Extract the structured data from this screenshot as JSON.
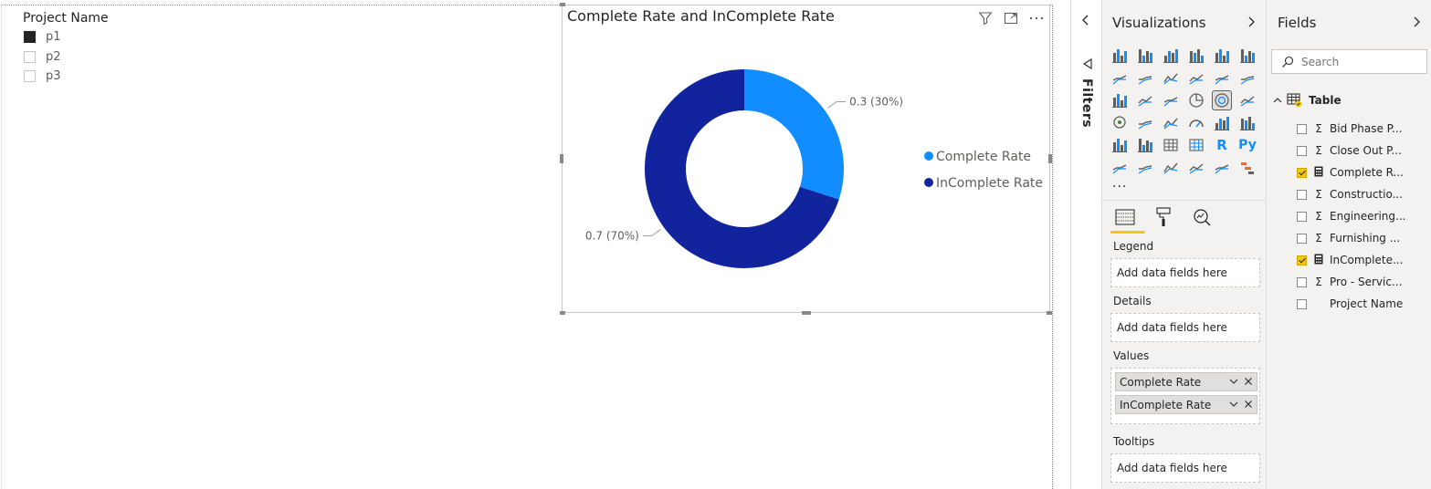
{
  "slicer": {
    "title": "Project Name",
    "items": [
      {
        "label": "p1",
        "checked": true
      },
      {
        "label": "p2",
        "checked": false
      },
      {
        "label": "p3",
        "checked": false
      }
    ]
  },
  "visual": {
    "title": "Complete Rate and InComplete Rate",
    "header_icons": [
      "filter-icon",
      "focus-mode-icon",
      "more-options-icon"
    ]
  },
  "chart_data": {
    "type": "pie",
    "variant": "donut",
    "title": "Complete Rate and InComplete Rate",
    "legend_position": "right",
    "series": [
      {
        "name": "Complete Rate",
        "value": 0.3,
        "label": "0.3 (30%)",
        "color": "#118dff"
      },
      {
        "name": "InComplete Rate",
        "value": 0.7,
        "label": "0.7 (70%)",
        "color": "#12239e"
      }
    ]
  },
  "filters": {
    "label": "Filters"
  },
  "visualizations": {
    "title": "Visualizations",
    "more": "...",
    "selected_index": 16,
    "icons": [
      "stacked-bar-icon",
      "stacked-column-icon",
      "clustered-bar-icon",
      "clustered-column-icon",
      "100-stacked-bar-icon",
      "100-stacked-column-icon",
      "line-chart-icon",
      "area-chart-icon",
      "stacked-area-icon",
      "line-clustered-column-icon",
      "line-stacked-column-icon",
      "ribbon-chart-icon",
      "waterfall-icon",
      "funnel-icon",
      "scatter-icon",
      "pie-chart-icon",
      "donut-chart-icon",
      "treemap-icon",
      "map-icon",
      "filled-map-icon",
      "shape-map-icon",
      "gauge-icon",
      "card-icon",
      "multi-row-card-icon",
      "kpi-icon",
      "slicer-icon",
      "table-icon",
      "matrix-icon",
      "r-visual-icon",
      "python-visual-icon",
      "key-influencers-icon",
      "decomposition-tree-icon",
      "qa-icon",
      "smart-narrative-icon",
      "power-apps-icon",
      "power-automate-icon"
    ],
    "r_label": "R",
    "py_label": "Py",
    "tabs": [
      "fields-tab-icon",
      "format-tab-icon",
      "analytics-tab-icon"
    ],
    "wells": {
      "legend": {
        "label": "Legend",
        "placeholder": "Add data fields here"
      },
      "details": {
        "label": "Details",
        "placeholder": "Add data fields here"
      },
      "values": {
        "label": "Values",
        "items": [
          "Complete Rate",
          "InComplete Rate"
        ]
      },
      "tooltips": {
        "label": "Tooltips",
        "placeholder": "Add data fields here"
      }
    }
  },
  "fields": {
    "title": "Fields",
    "search_placeholder": "Search",
    "table_name": "Table",
    "items": [
      {
        "label": "Bid Phase P...",
        "type": "Σ",
        "checked": false
      },
      {
        "label": "Close Out P...",
        "type": "Σ",
        "checked": false
      },
      {
        "label": "Complete R...",
        "type": "calc",
        "checked": true
      },
      {
        "label": "Constructio...",
        "type": "Σ",
        "checked": false
      },
      {
        "label": "Engineering...",
        "type": "Σ",
        "checked": false
      },
      {
        "label": "Furnishing ...",
        "type": "Σ",
        "checked": false
      },
      {
        "label": "InComplete...",
        "type": "calc",
        "checked": true
      },
      {
        "label": "Pro - Servic...",
        "type": "Σ",
        "checked": false
      },
      {
        "label": "Project Name",
        "type": "",
        "checked": false
      }
    ]
  },
  "colors": {
    "accent": "#f2c811",
    "complete": "#118dff",
    "incomplete": "#12239e",
    "pane_bg": "#f3f2f1"
  }
}
